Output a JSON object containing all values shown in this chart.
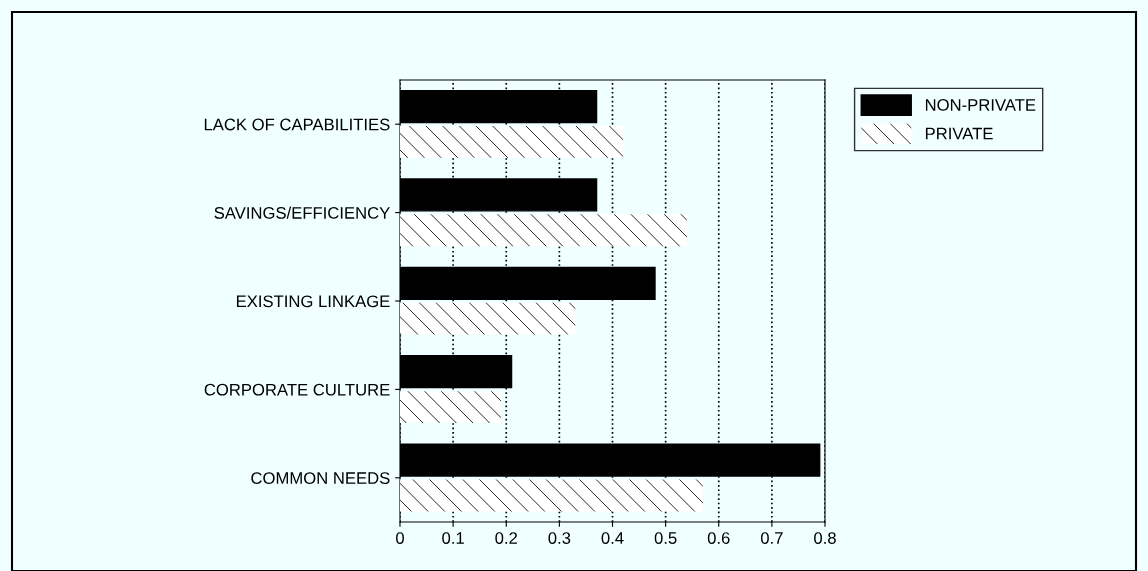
{
  "chart_data": {
    "type": "bar",
    "orientation": "horizontal",
    "categories": [
      "LACK OF CAPABILITIES",
      "SAVINGS/EFFICIENCY",
      "EXISTING LINKAGE",
      "CORPORATE CULTURE",
      "COMMON NEEDS"
    ],
    "series": [
      {
        "name": "NON-PRIVATE",
        "color": "#000000",
        "values": [
          0.37,
          0.37,
          0.48,
          0.21,
          0.79
        ]
      },
      {
        "name": "PRIVATE",
        "color": "#ffffff",
        "values": [
          0.42,
          0.54,
          0.33,
          0.19,
          0.57
        ]
      }
    ],
    "xlim": [
      0,
      0.8
    ],
    "xticks": [
      0,
      {
        "value": 0.1,
        "label": "0.1"
      },
      {
        "value": 0.2,
        "label": "0.2"
      },
      {
        "value": 0.3,
        "label": "0.3"
      },
      {
        "value": 0.4,
        "label": "0.4"
      },
      {
        "value": 0.5,
        "label": "0.5"
      },
      {
        "value": 0.6,
        "label": "0.6"
      },
      {
        "value": 0.7,
        "label": "0.7"
      },
      {
        "value": 0.8,
        "label": "0.8"
      }
    ],
    "grid": "x",
    "legend": "top right"
  }
}
